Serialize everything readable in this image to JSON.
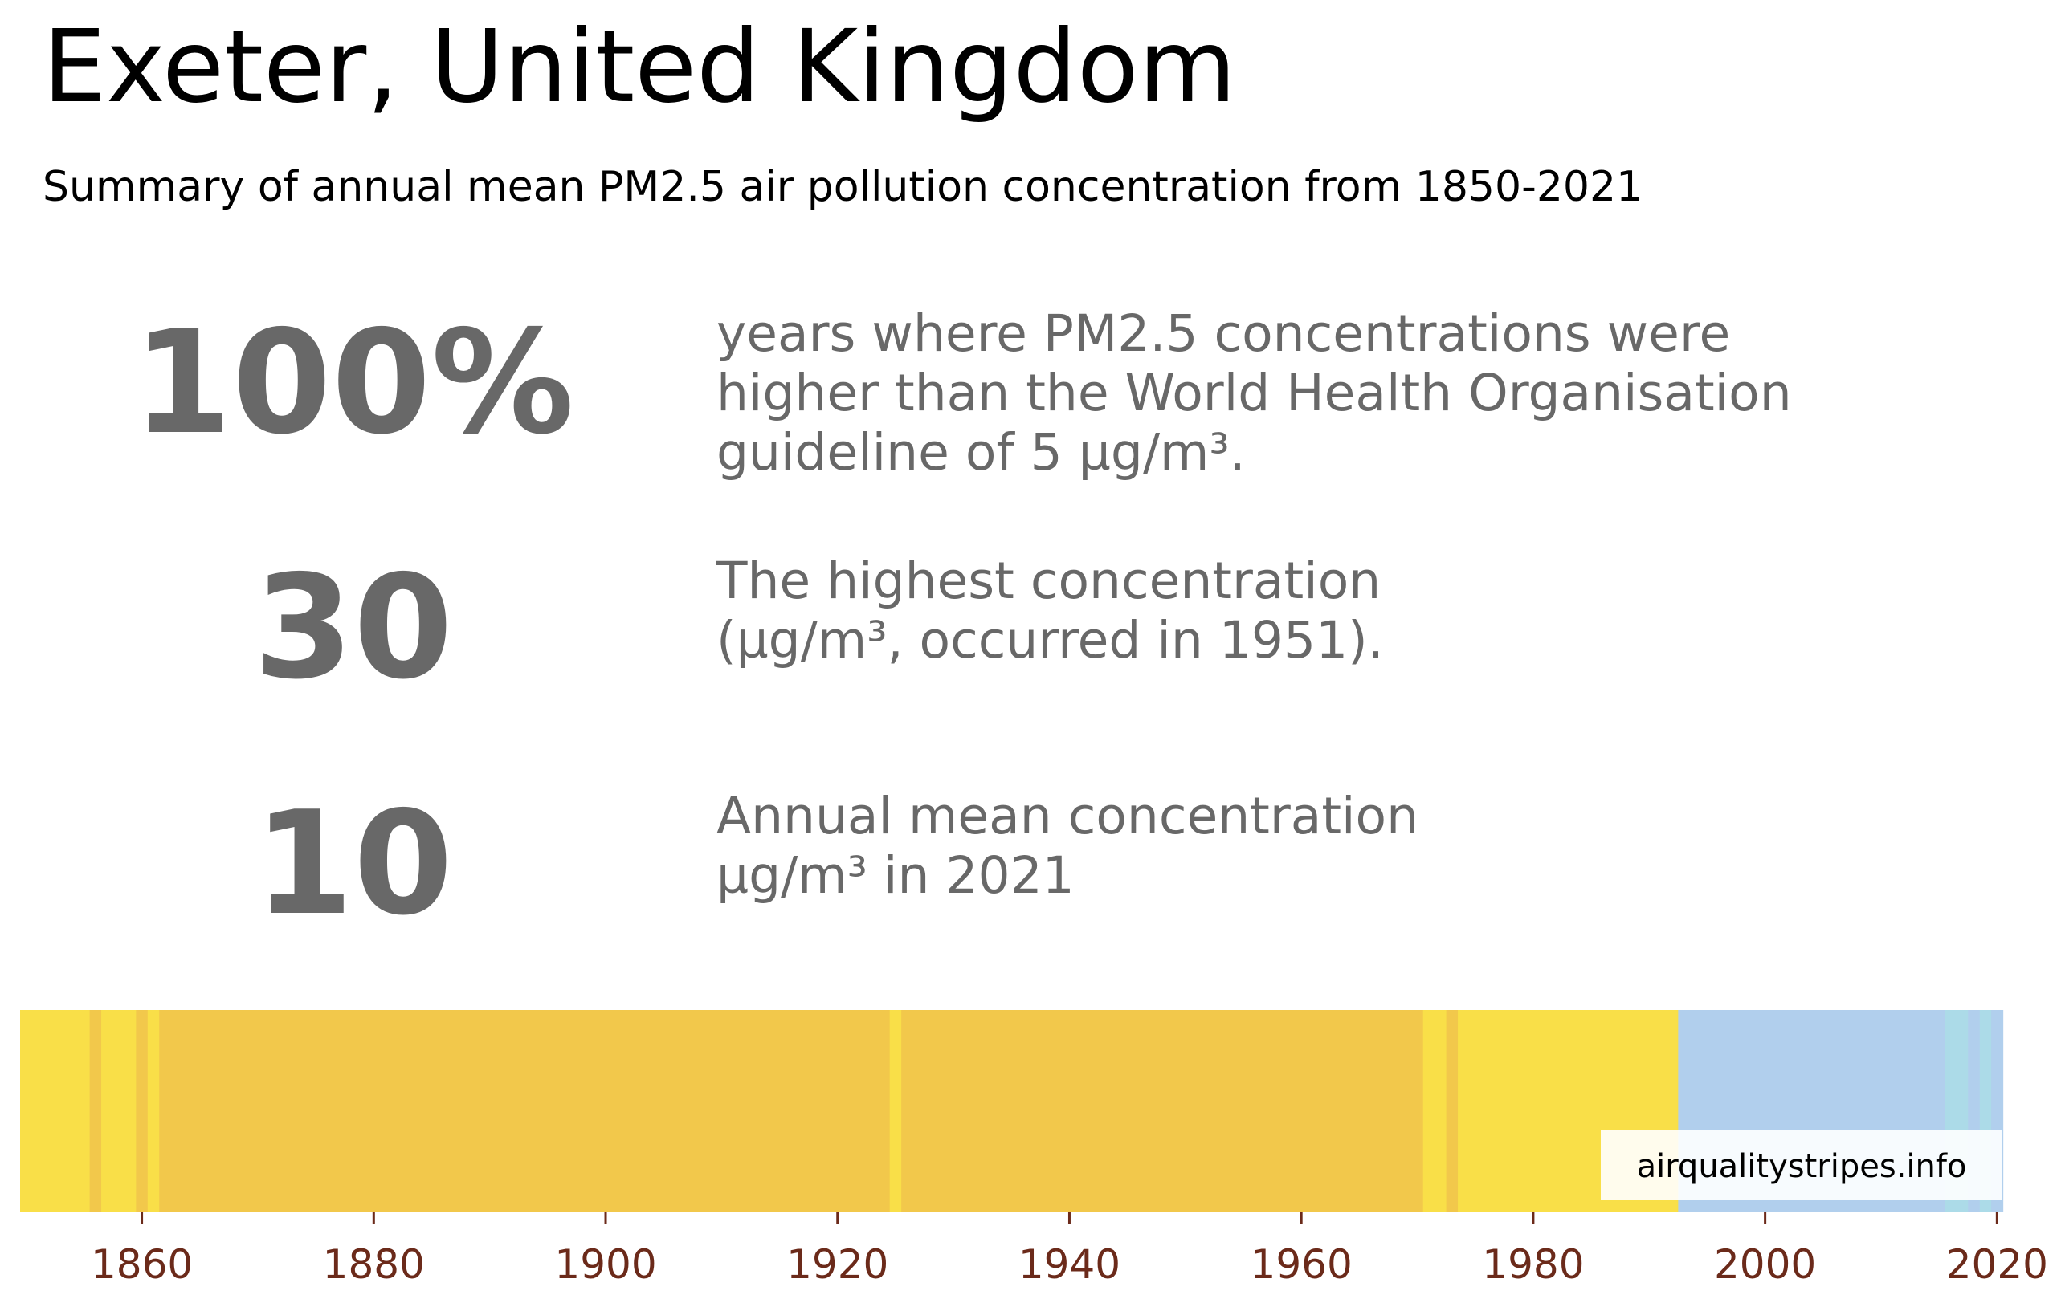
{
  "header": {
    "title": "Exeter, United Kingdom",
    "subtitle": "Summary of annual mean PM2.5 air pollution concentration from 1850-2021"
  },
  "stats": [
    {
      "value": "100%",
      "lines": [
        "years where PM2.5 concentrations were",
        "higher than the World Health Organisation",
        "guideline of 5 µg/m³."
      ]
    },
    {
      "value": "30",
      "lines": [
        "The highest concentration",
        "(µg/m³, occurred in 1951)."
      ]
    },
    {
      "value": "10",
      "lines": [
        "Annual mean concentration",
        "µg/m³ in 2021"
      ]
    }
  ],
  "watermark": "airqualitystripes.info",
  "colors": {
    "light_yellow": "#f9df48",
    "gold": "#f2c84b",
    "light_blue": "#b1cfed",
    "pale_blue": "#acdbe8",
    "tick_label": "#6b2a1a",
    "stat_text": "#686868"
  },
  "chart_data": {
    "type": "heatmap",
    "x_range": [
      1850,
      2021
    ],
    "x_ticks": [
      1860,
      1880,
      1900,
      1920,
      1940,
      1960,
      1980,
      2000,
      2020
    ],
    "segments": [
      {
        "start": 1850,
        "end": 1856,
        "color": "light_yellow"
      },
      {
        "start": 1856,
        "end": 1857,
        "color": "gold"
      },
      {
        "start": 1857,
        "end": 1860,
        "color": "light_yellow"
      },
      {
        "start": 1860,
        "end": 1861,
        "color": "gold"
      },
      {
        "start": 1861,
        "end": 1862,
        "color": "light_yellow"
      },
      {
        "start": 1862,
        "end": 1925,
        "color": "gold"
      },
      {
        "start": 1925,
        "end": 1926,
        "color": "light_yellow"
      },
      {
        "start": 1926,
        "end": 1971,
        "color": "gold"
      },
      {
        "start": 1971,
        "end": 1973,
        "color": "light_yellow"
      },
      {
        "start": 1973,
        "end": 1974,
        "color": "gold"
      },
      {
        "start": 1974,
        "end": 1993,
        "color": "light_yellow"
      },
      {
        "start": 1993,
        "end": 2016,
        "color": "light_blue"
      },
      {
        "start": 2016,
        "end": 2018,
        "color": "pale_blue"
      },
      {
        "start": 2018,
        "end": 2019,
        "color": "light_blue"
      },
      {
        "start": 2019,
        "end": 2020,
        "color": "pale_blue"
      },
      {
        "start": 2020,
        "end": 2021,
        "color": "light_blue"
      }
    ]
  }
}
